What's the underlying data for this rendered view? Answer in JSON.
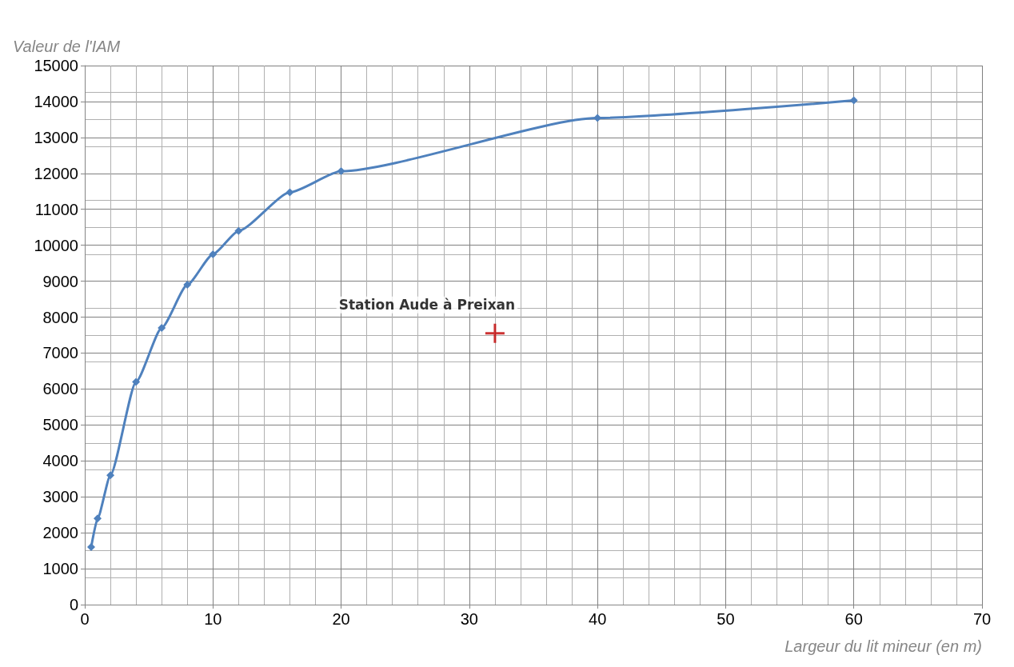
{
  "chart_data": {
    "type": "line",
    "xlabel": "Largeur du lit mineur (en m)",
    "ylabel": "Valeur de l'IAM",
    "xlim": [
      0,
      70
    ],
    "xticks": [
      0,
      10,
      20,
      30,
      40,
      50,
      60,
      70
    ],
    "ylim": [
      0,
      15000
    ],
    "yticks": [
      0,
      1000,
      2000,
      3000,
      4000,
      5000,
      6000,
      7000,
      8000,
      9000,
      10000,
      11000,
      12000,
      13000,
      14000,
      15000
    ],
    "grid": true,
    "series": [
      {
        "color": "#4f81bd",
        "marker": "diamond",
        "x": [
          0.5,
          1,
          2,
          4,
          6,
          8,
          10,
          12,
          16,
          20,
          40,
          60
        ],
        "values": [
          1600,
          2400,
          3600,
          6200,
          7700,
          8900,
          9750,
          10400,
          11470,
          12060,
          13540,
          14030
        ]
      },
      {
        "type": "scatter",
        "color": "#c00000",
        "marker": "cross",
        "x": [
          32
        ],
        "values": [
          7550
        ]
      }
    ],
    "annotations": [
      {
        "text": "Station Aude à Preixan",
        "x": 32,
        "y": 7550
      }
    ]
  }
}
